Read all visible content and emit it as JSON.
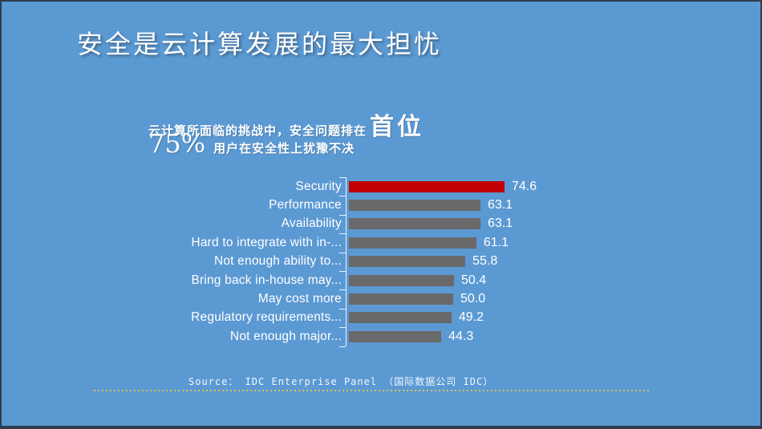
{
  "slide": {
    "title": "安全是云计算发展的最大担忧",
    "subtitle": {
      "prefix": "云计算所面临的挑战中，安全问题排在",
      "highlight": "首位",
      "stat": "75%",
      "stat_text": "用户在安全性上犹豫不决"
    },
    "source_text": "Source： IDC Enterprise Panel （国际数据公司 IDC）",
    "colors": {
      "background": "#5B99D3",
      "border": "#2F3D4C",
      "text": "#FFFFFF",
      "highlight_bar": "#C00000",
      "default_bar": "#696969",
      "divider_dots": "#D9C45C",
      "axis": "#FFFFFF"
    }
  },
  "chart_data": {
    "type": "bar",
    "orientation": "horizontal",
    "title": "",
    "xlabel": "",
    "ylabel": "",
    "categories": [
      "Security",
      "Performance",
      "Availability",
      "Hard to integrate with in-...",
      "Not enough ability to...",
      "Bring back in-house may...",
      "May cost more",
      "Regulatory requirements...",
      "Not enough major..."
    ],
    "values": [
      74.6,
      63.1,
      63.1,
      61.1,
      55.8,
      50.4,
      50.0,
      49.2,
      44.3
    ],
    "value_labels": [
      "74.6",
      "63.1",
      "63.1",
      "61.1",
      "55.8",
      "50.4",
      "50.0",
      "49.2",
      "44.3"
    ],
    "highlight_index": 0,
    "bar_color_highlight": "#C00000",
    "bar_color_default": "#696969",
    "label_color": "#FFFFFF",
    "xlim": [
      0,
      80
    ],
    "grid": false,
    "legend": false,
    "data_labels": true
  }
}
